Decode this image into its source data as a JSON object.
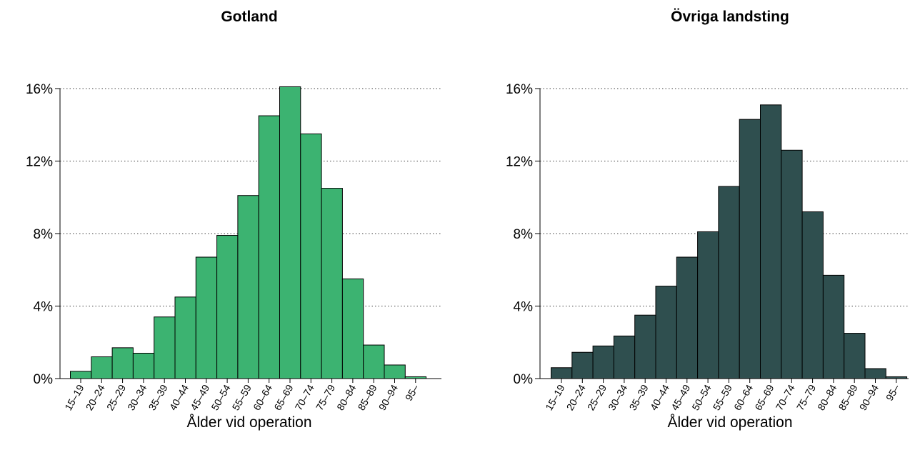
{
  "chart_data": [
    {
      "type": "bar",
      "title": "Gotland",
      "xlabel": "Ålder vid operation",
      "ylabel": "",
      "ylim": [
        0,
        16
      ],
      "yticks": [
        0,
        4,
        8,
        12,
        16
      ],
      "ytick_labels": [
        "0%",
        "4%",
        "8%",
        "12%",
        "16%"
      ],
      "grid": "horizontal dotted",
      "bar_color": "#3CB371",
      "categories": [
        "15–19",
        "20–24",
        "25–29",
        "30–34",
        "35–39",
        "40–44",
        "45–49",
        "50–54",
        "55–59",
        "60–64",
        "65–69",
        "70–74",
        "75–79",
        "80–84",
        "85–89",
        "90–94",
        "95–"
      ],
      "values": [
        0.4,
        1.2,
        1.7,
        1.4,
        3.4,
        4.5,
        6.7,
        7.9,
        10.1,
        14.5,
        16.1,
        13.5,
        10.5,
        5.5,
        1.85,
        0.75,
        0.1
      ]
    },
    {
      "type": "bar",
      "title": "Övriga landsting",
      "xlabel": "Ålder vid operation",
      "ylabel": "",
      "ylim": [
        0,
        16
      ],
      "yticks": [
        0,
        4,
        8,
        12,
        16
      ],
      "ytick_labels": [
        "0%",
        "4%",
        "8%",
        "12%",
        "16%"
      ],
      "grid": "horizontal dotted",
      "bar_color": "#2F4F4F",
      "categories": [
        "15–19",
        "20–24",
        "25–29",
        "30–34",
        "35–39",
        "40–44",
        "45–49",
        "50–54",
        "55–59",
        "60–64",
        "65–69",
        "70–74",
        "75–79",
        "80–84",
        "85–89",
        "90–94",
        "95–"
      ],
      "values": [
        0.6,
        1.45,
        1.8,
        2.35,
        3.5,
        5.1,
        6.7,
        8.1,
        10.6,
        14.3,
        15.1,
        12.6,
        9.2,
        5.7,
        2.5,
        0.55,
        0.1
      ]
    }
  ]
}
